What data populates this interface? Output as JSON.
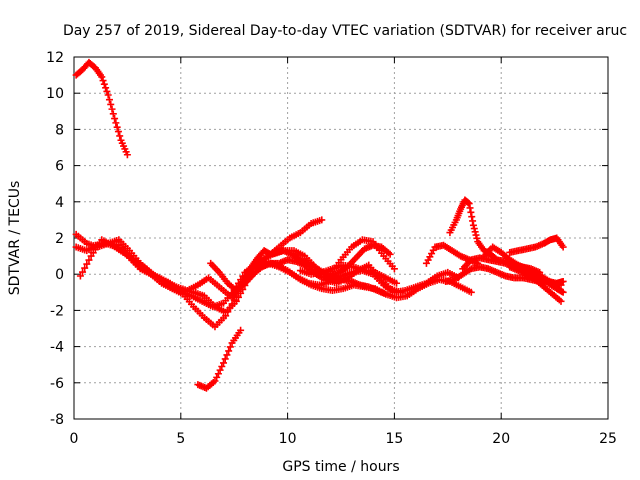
{
  "chart_data": {
    "type": "scatter",
    "title": "Day 257 of 2019, Sidereal Day-to-day VTEC variation (SDTVAR) for receiver aruc",
    "xlabel": "GPS time / hours",
    "ylabel": "SDTVAR / TECUs",
    "xlim": [
      0,
      25
    ],
    "ylim": [
      -8,
      12
    ],
    "xticks": [
      0,
      5,
      10,
      15,
      20,
      25
    ],
    "yticks": [
      -8,
      -6,
      -4,
      -2,
      0,
      2,
      4,
      6,
      8,
      10,
      12
    ],
    "grid": true,
    "marker": "plus",
    "color": "#ff0000",
    "series": [
      {
        "name": "s1",
        "x": [
          0.1,
          0.4,
          0.7,
          1.0,
          1.3,
          1.6,
          1.9,
          2.2,
          2.5
        ],
        "y": [
          11.0,
          11.3,
          11.7,
          11.4,
          10.9,
          9.9,
          8.6,
          7.4,
          6.6
        ]
      },
      {
        "name": "s2",
        "x": [
          5.8,
          6.2,
          6.6,
          7.0,
          7.4,
          7.8
        ],
        "y": [
          -6.1,
          -6.3,
          -5.9,
          -4.9,
          -3.8,
          -3.1
        ]
      },
      {
        "name": "s3",
        "x": [
          0.1,
          0.6,
          1.1,
          1.6,
          2.1,
          2.6,
          3.1,
          3.6,
          4.1,
          4.6,
          5.1,
          5.6,
          6.1,
          6.6,
          7.1,
          7.6,
          8.1,
          8.6,
          9.1,
          9.6,
          10.1,
          10.6,
          11.1,
          11.6
        ],
        "y": [
          2.2,
          1.7,
          1.5,
          1.7,
          1.9,
          1.3,
          0.6,
          0.0,
          -0.3,
          -0.8,
          -1.1,
          -1.8,
          -2.4,
          -2.9,
          -2.3,
          -1.2,
          0.1,
          0.6,
          1.0,
          1.5,
          2.0,
          2.3,
          2.8,
          3.0
        ]
      },
      {
        "name": "s4",
        "x": [
          0.1,
          0.6,
          1.1,
          1.6,
          2.1,
          2.6,
          3.1,
          3.6,
          4.1,
          4.6,
          5.1,
          5.6,
          6.1,
          6.6,
          7.1,
          7.6,
          8.1,
          8.6,
          9.1,
          9.6,
          10.1,
          10.6,
          11.1,
          11.6,
          12.1,
          12.6,
          13.1,
          13.6,
          14.1,
          14.6,
          15.1,
          15.6,
          16.1,
          16.6,
          17.1,
          17.6,
          18.1,
          18.6
        ],
        "y": [
          1.5,
          1.3,
          1.6,
          1.7,
          1.6,
          0.9,
          0.3,
          0.0,
          -0.5,
          -0.8,
          -0.9,
          -1.0,
          -1.2,
          -1.8,
          -2.1,
          -1.5,
          -0.4,
          0.3,
          0.6,
          0.4,
          0.1,
          -0.3,
          -0.6,
          -0.8,
          -0.9,
          -0.8,
          -0.6,
          -0.7,
          -0.8,
          -1.1,
          -1.3,
          -1.2,
          -0.8,
          -0.5,
          -0.3,
          -0.4,
          -0.7,
          -1.0
        ]
      },
      {
        "name": "s5",
        "x": [
          0.3,
          0.8,
          1.3,
          1.8,
          2.3,
          2.8,
          3.3,
          3.8,
          4.3,
          4.8,
          5.3,
          5.8,
          6.3,
          6.8,
          7.3,
          7.8,
          8.3,
          8.8,
          9.3,
          9.8,
          10.3,
          10.8,
          11.3,
          11.8,
          12.3,
          12.8,
          13.3,
          13.8,
          14.3,
          14.8,
          15.3
        ],
        "y": [
          -0.1,
          1.0,
          1.9,
          1.6,
          1.2,
          0.8,
          0.4,
          -0.1,
          -0.4,
          -0.7,
          -0.9,
          -0.6,
          -0.2,
          -0.7,
          -1.2,
          -0.6,
          0.3,
          0.8,
          1.1,
          1.3,
          1.3,
          1.0,
          0.4,
          -0.3,
          -0.5,
          -0.2,
          0.2,
          0.5,
          -0.2,
          -0.8,
          -1.0
        ]
      },
      {
        "name": "s6",
        "x": [
          1.0,
          1.5,
          2.0,
          2.5,
          3.0,
          3.5,
          4.0,
          4.5,
          5.0,
          5.5,
          6.0,
          6.5,
          7.0,
          7.5,
          8.0,
          8.5,
          9.0,
          9.5,
          10.0,
          10.5,
          11.0,
          11.5,
          12.0,
          12.5,
          13.0,
          13.5,
          14.0,
          14.5,
          15.0,
          15.5,
          16.0,
          16.5,
          17.0,
          17.5,
          18.0
        ],
        "y": [
          1.6,
          1.7,
          1.5,
          1.1,
          0.5,
          0.1,
          -0.2,
          -0.5,
          -1.0,
          -1.2,
          -1.5,
          -1.8,
          -1.6,
          -0.9,
          0.1,
          0.5,
          0.7,
          0.5,
          0.2,
          -0.2,
          -0.5,
          -0.6,
          -0.4,
          -0.1,
          0.1,
          0.2,
          0.0,
          -0.6,
          -1.0,
          -0.9,
          -0.7,
          -0.5,
          -0.1,
          0.1,
          -0.2
        ]
      },
      {
        "name": "s7",
        "x": [
          6.4,
          6.8,
          7.2,
          7.6,
          8.0,
          8.4,
          8.8,
          9.2,
          9.6,
          10.0,
          10.4,
          10.8,
          11.2,
          11.6,
          12.0,
          12.4,
          12.8,
          13.2,
          13.6,
          14.0,
          14.4,
          14.8
        ],
        "y": [
          0.6,
          0.1,
          -0.5,
          -0.9,
          -0.5,
          0.0,
          0.4,
          0.6,
          0.6,
          0.8,
          0.7,
          0.5,
          0.1,
          -0.2,
          -0.1,
          0.1,
          0.4,
          0.9,
          1.4,
          1.6,
          1.5,
          1.1
        ]
      },
      {
        "name": "s8",
        "x": [
          7.4,
          7.7,
          8.0,
          8.3,
          8.6,
          8.9,
          9.2,
          9.5,
          9.8,
          10.2,
          10.6,
          11.0,
          11.4,
          11.8,
          12.2,
          12.6,
          13.0,
          13.4,
          13.8,
          14.2,
          14.6
        ],
        "y": [
          -1.3,
          -0.8,
          -0.2,
          0.4,
          0.9,
          1.3,
          1.1,
          1.2,
          1.3,
          1.1,
          0.8,
          0.6,
          0.3,
          0.0,
          -0.2,
          -0.3,
          -0.4,
          -0.6,
          -0.7,
          -0.9,
          -1.1
        ]
      },
      {
        "name": "s9",
        "x": [
          10.6,
          11.1,
          11.6,
          12.1,
          12.6,
          13.1,
          13.6,
          14.1,
          14.6,
          15.1
        ],
        "y": [
          0.2,
          0.0,
          0.1,
          0.3,
          0.5,
          0.4,
          0.2,
          0.1,
          -0.2,
          -0.5
        ]
      },
      {
        "name": "s10",
        "x": [
          12.0,
          12.5,
          13.0,
          13.5,
          14.0,
          14.5,
          15.0
        ],
        "y": [
          0.0,
          0.8,
          1.5,
          1.9,
          1.8,
          1.0,
          0.3
        ]
      },
      {
        "name": "s11",
        "x": [
          16.5,
          16.9,
          17.3,
          17.7,
          18.1,
          18.5,
          18.9
        ],
        "y": [
          0.6,
          1.5,
          1.6,
          1.3,
          1.0,
          0.8,
          0.6
        ]
      },
      {
        "name": "s12",
        "x": [
          17.6,
          17.9,
          18.1,
          18.3,
          18.5,
          18.7,
          18.9,
          19.2,
          19.5,
          19.8,
          20.2,
          20.6,
          21.0,
          21.4,
          21.8
        ],
        "y": [
          2.3,
          3.0,
          3.6,
          4.1,
          3.9,
          2.7,
          1.8,
          1.3,
          1.1,
          0.8,
          0.7,
          0.5,
          0.4,
          0.3,
          0.1
        ]
      },
      {
        "name": "s13",
        "x": [
          18.2,
          18.6,
          19.0,
          19.4,
          19.8,
          20.2,
          20.6,
          21.0,
          21.4,
          21.8,
          22.2,
          22.6,
          22.9
        ],
        "y": [
          0.3,
          0.8,
          0.9,
          0.8,
          0.7,
          0.6,
          0.4,
          0.2,
          0.0,
          -0.2,
          -0.5,
          -0.8,
          -1.0
        ]
      },
      {
        "name": "s14",
        "x": [
          19.2,
          19.6,
          20.0,
          20.4,
          20.8,
          21.2,
          21.6,
          22.0,
          22.4,
          22.8
        ],
        "y": [
          1.0,
          1.5,
          1.2,
          0.8,
          0.5,
          0.3,
          0.1,
          -0.2,
          -0.5,
          -0.6
        ]
      },
      {
        "name": "s15",
        "x": [
          20.4,
          20.8,
          21.2,
          21.6,
          22.0,
          22.4,
          22.8
        ],
        "y": [
          0.4,
          0.2,
          0.0,
          -0.3,
          -0.7,
          -1.1,
          -1.5
        ]
      },
      {
        "name": "s16",
        "x": [
          20.4,
          20.8,
          21.2,
          21.6,
          22.0,
          22.3,
          22.6,
          22.9
        ],
        "y": [
          1.2,
          1.3,
          1.4,
          1.5,
          1.7,
          1.9,
          2.0,
          1.5
        ]
      },
      {
        "name": "s17",
        "x": [
          17.4,
          17.8,
          18.2,
          18.6,
          19.0,
          19.4,
          19.8,
          20.2,
          20.6,
          21.0,
          21.4,
          21.8,
          22.2,
          22.6,
          22.9
        ],
        "y": [
          -0.4,
          -0.3,
          0.0,
          0.3,
          0.4,
          0.3,
          0.1,
          -0.1,
          -0.2,
          -0.2,
          -0.3,
          -0.4,
          -0.4,
          -0.5,
          -0.4
        ]
      }
    ]
  }
}
